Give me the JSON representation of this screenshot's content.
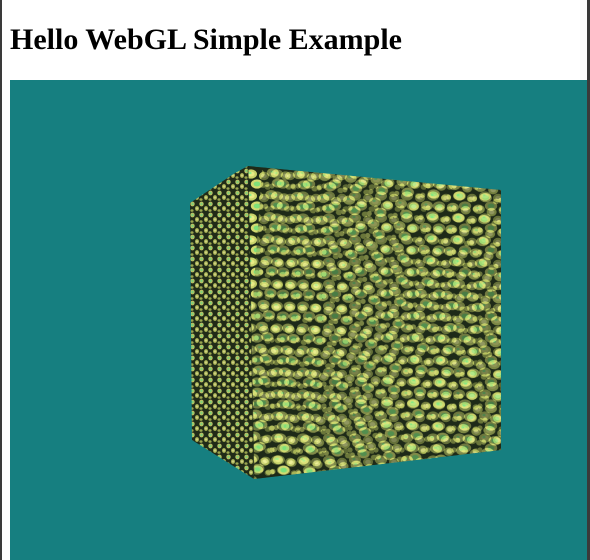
{
  "page": {
    "title": "Hello WebGL Simple Example"
  },
  "canvas": {
    "clear_color": "#167f80",
    "scene": "textured-rotating-cube",
    "texture": "green-yellow-scale-pattern"
  },
  "colors": {
    "background": "#ffffff",
    "frame": "#3a3a3a",
    "scale_light": "#e6e67a",
    "scale_green": "#7fe07a",
    "scale_dark": "#1e2a18"
  }
}
